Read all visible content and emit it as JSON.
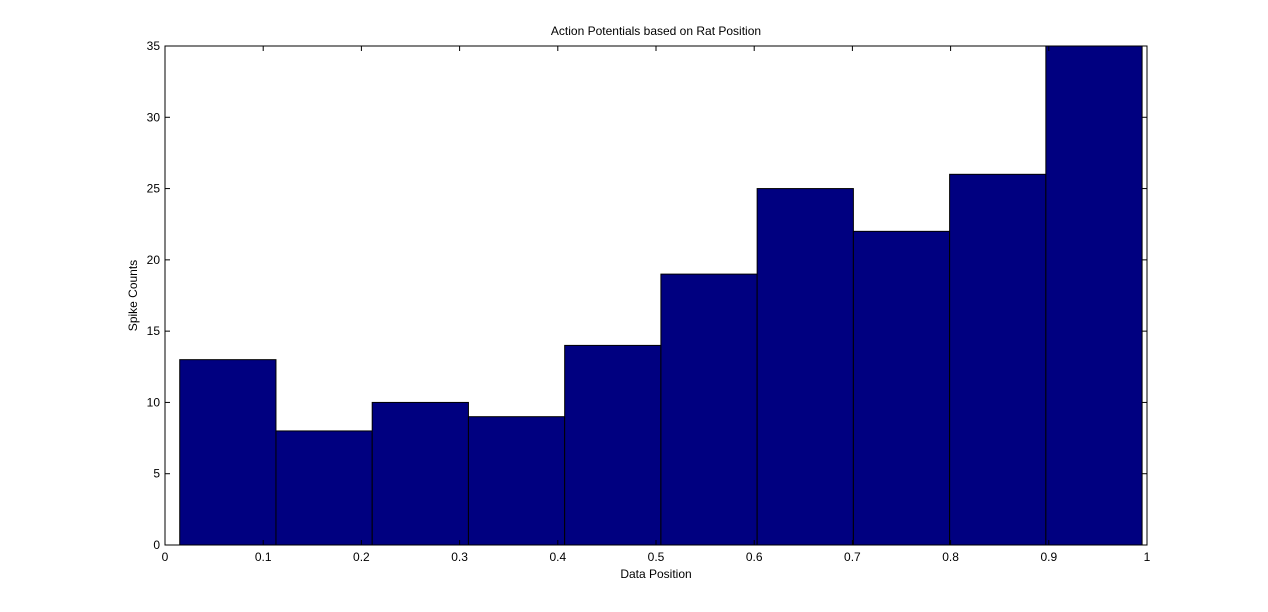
{
  "chart_data": {
    "type": "bar",
    "subtype": "histogram",
    "title": "Action Potentials based on Rat Position",
    "xlabel": "Data Position",
    "ylabel": "Spike Counts",
    "xlim": [
      0,
      1
    ],
    "ylim": [
      0,
      35
    ],
    "xticks": [
      "0",
      "0.1",
      "0.2",
      "0.3",
      "0.4",
      "0.5",
      "0.6",
      "0.7",
      "0.8",
      "0.9",
      "1"
    ],
    "yticks": [
      "0",
      "5",
      "10",
      "15",
      "20",
      "25",
      "30",
      "35"
    ],
    "bin_edges": [
      0.015,
      0.113,
      0.211,
      0.309,
      0.407,
      0.505,
      0.603,
      0.701,
      0.799,
      0.897,
      0.995
    ],
    "values": [
      13,
      8,
      10,
      9,
      14,
      19,
      25,
      22,
      26,
      35
    ],
    "bar_color": "#000080",
    "edge_color": "#000000",
    "grid": false,
    "legend": false
  }
}
